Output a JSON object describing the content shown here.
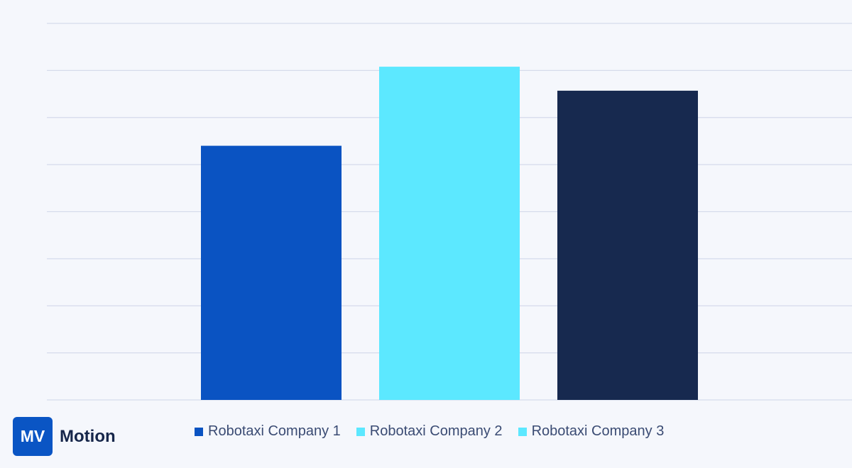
{
  "brand": {
    "badge": "MV",
    "name": "Motion"
  },
  "chart_data": {
    "type": "bar",
    "categories": [
      "Robotaxi Company 1",
      "Robotaxi Company 2",
      "Robotaxi Company 3"
    ],
    "values": [
      5.4,
      7.08,
      6.57
    ],
    "ylim": [
      0,
      8
    ],
    "grid": true,
    "legend_position": "bottom",
    "colors": [
      "#0a53c2",
      "#5ce8ff",
      "#17294f"
    ],
    "legend_swatch_colors": [
      "#0a53c2",
      "#5ce8ff",
      "#5ce8ff"
    ],
    "title": "",
    "xlabel": "",
    "ylabel": ""
  }
}
